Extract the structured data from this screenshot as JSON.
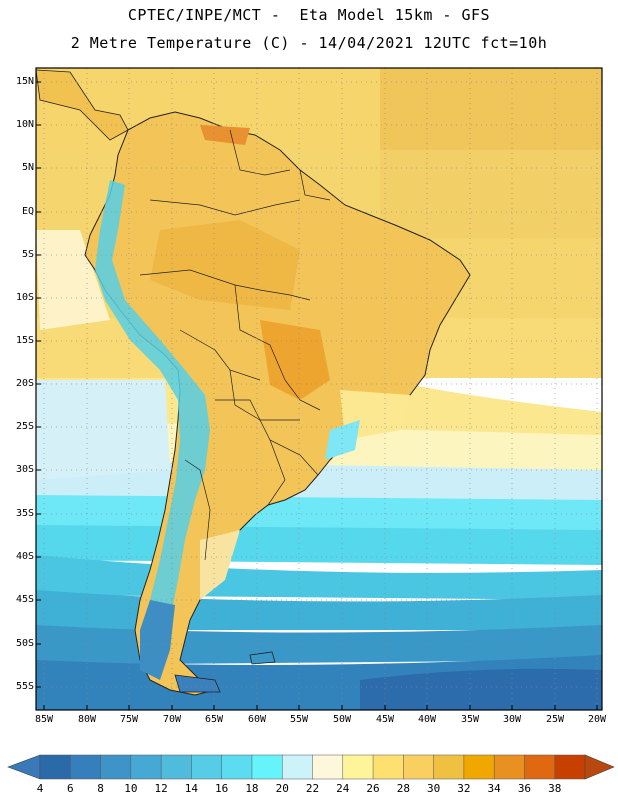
{
  "header": {
    "line1": "CPTEC/INPE/MCT -  Eta Model 15km - GFS",
    "line2": "2 Metre Temperature (C) - 14/04/2021 12UTC fct=10h"
  },
  "map": {
    "lat_labels": [
      "15N",
      "10N",
      "5N",
      "EQ",
      "5S",
      "10S",
      "15S",
      "20S",
      "25S",
      "30S",
      "35S",
      "40S",
      "45S",
      "50S",
      "55S"
    ],
    "lon_labels": [
      "85W",
      "80W",
      "75W",
      "70W",
      "65W",
      "60W",
      "55W",
      "50W",
      "45W",
      "40W",
      "35W",
      "30W",
      "25W",
      "20W"
    ]
  },
  "colorbar": {
    "ticks": [
      "4",
      "6",
      "8",
      "10",
      "12",
      "14",
      "16",
      "18",
      "20",
      "22",
      "24",
      "26",
      "28",
      "30",
      "32",
      "34",
      "36",
      "38"
    ],
    "colors": [
      "#2a6aa8",
      "#3580bc",
      "#3e94c8",
      "#46a8d4",
      "#4fbcdc",
      "#57cce6",
      "#5cdcf0",
      "#66f4fa",
      "#ccf2fa",
      "#fdf8dc",
      "#fef49a",
      "#fde070",
      "#f9d060",
      "#f0c040",
      "#f0a800",
      "#e89020",
      "#e06810",
      "#c84000"
    ],
    "low_color": "#3a78b8",
    "high_color": "#b84810"
  }
}
